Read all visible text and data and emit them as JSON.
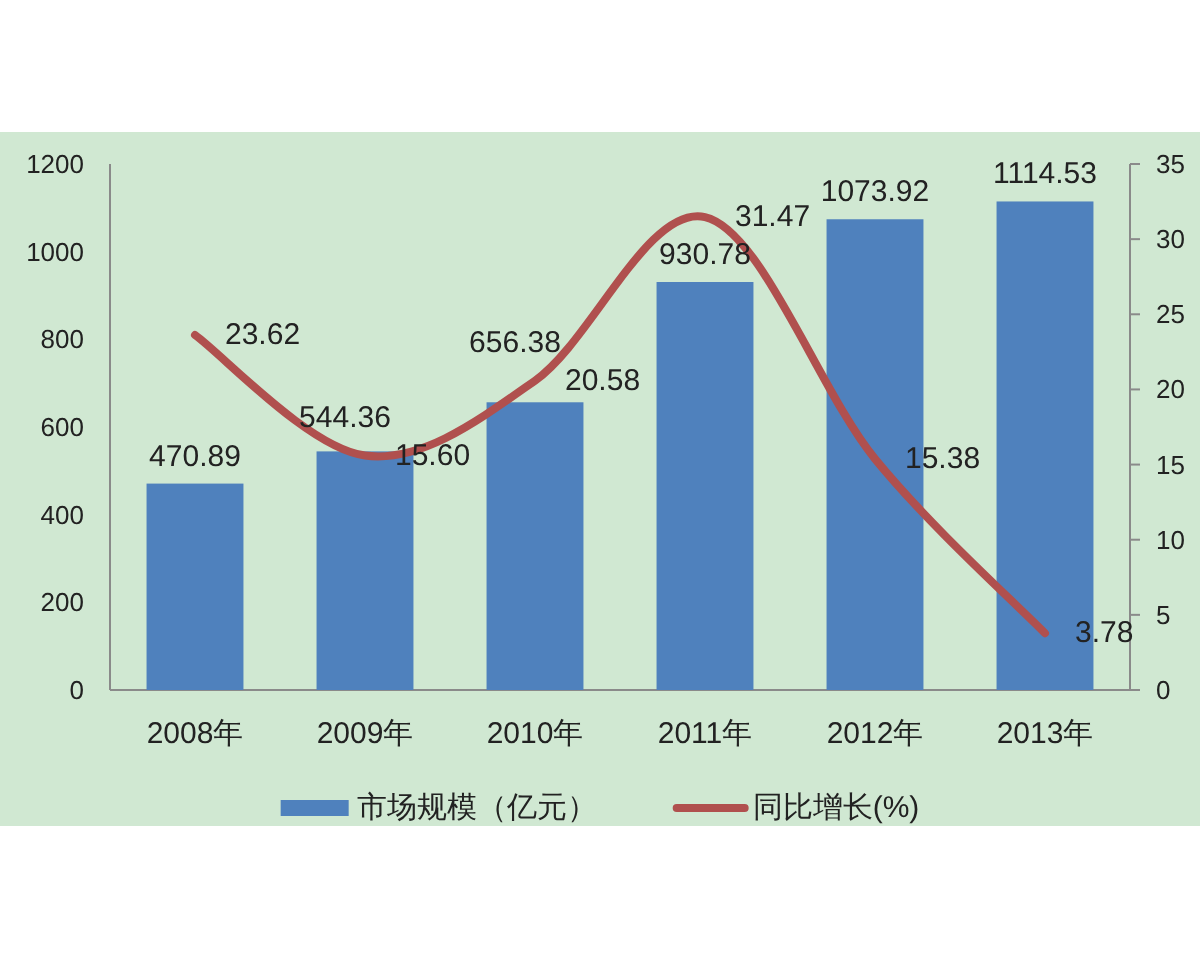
{
  "chart_data": {
    "type": "bar",
    "categories": [
      "2008年",
      "2009年",
      "2010年",
      "2011年",
      "2012年",
      "2013年"
    ],
    "series": [
      {
        "name": "市场规模（亿元）",
        "color": "#4f81bd",
        "values": [
          470.89,
          544.36,
          656.38,
          930.78,
          1073.92,
          1114.53
        ],
        "value_labels": [
          "470.89",
          "544.36",
          "656.38",
          "930.78",
          "1073.92",
          "1114.53"
        ]
      },
      {
        "name": "同比增长(%)",
        "type": "line",
        "axis": "y2",
        "color": "#b0504e",
        "values": [
          23.62,
          15.6,
          20.58,
          31.47,
          15.38,
          3.78
        ],
        "value_labels": [
          "23.62",
          "15.60",
          "20.58",
          "31.47",
          "15.38",
          "3.78"
        ]
      }
    ],
    "ylim": [
      0,
      1200
    ],
    "yticks": [
      0,
      200,
      400,
      600,
      800,
      1000,
      1200
    ],
    "y2lim": [
      0,
      35
    ],
    "y2ticks": [
      0,
      5,
      10,
      15,
      20,
      25,
      30,
      35
    ],
    "legend": "bottom",
    "grid": false,
    "marker": "none",
    "line_style": "solid"
  }
}
